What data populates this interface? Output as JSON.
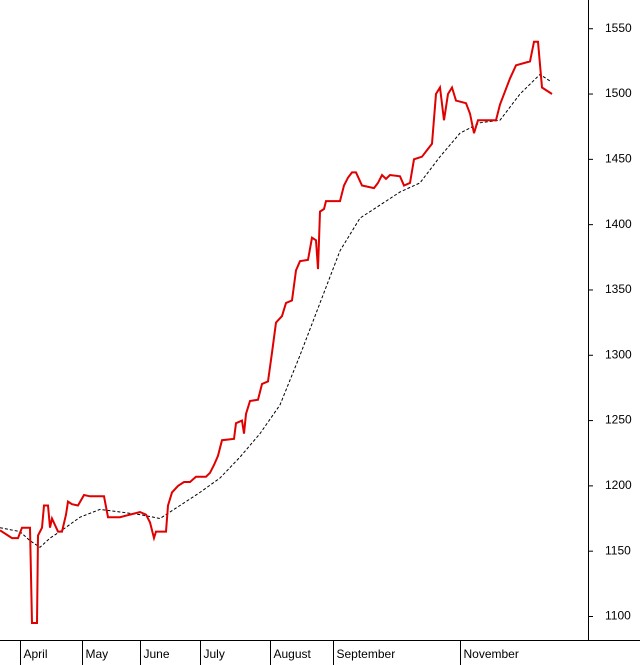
{
  "chart_data": {
    "type": "line",
    "xlim": [
      0,
      588
    ],
    "xticks": [
      {
        "value": 20,
        "label": "April"
      },
      {
        "value": 82,
        "label": "May"
      },
      {
        "value": 140,
        "label": "June"
      },
      {
        "value": 200,
        "label": "July"
      },
      {
        "value": 270,
        "label": "August"
      },
      {
        "value": 333,
        "label": "September"
      },
      {
        "value": 460,
        "label": "November"
      }
    ],
    "ylim": [
      1082,
      1572
    ],
    "yticks": [
      1100,
      1150,
      1200,
      1250,
      1300,
      1350,
      1400,
      1450,
      1500,
      1550
    ],
    "series": [
      {
        "color": "#e00000",
        "line_style": "solid",
        "x": [
          0,
          8,
          12,
          18,
          22,
          30,
          32,
          37,
          38,
          42,
          44,
          48,
          50,
          52,
          55,
          58,
          62,
          66,
          68,
          72,
          78,
          84,
          90,
          104,
          108,
          120,
          130,
          140,
          146,
          150,
          154,
          156,
          166,
          168,
          172,
          178,
          184,
          190,
          196,
          206,
          210,
          214,
          218,
          222,
          234,
          236,
          242,
          244,
          246,
          250,
          258,
          262,
          268,
          272,
          276,
          282,
          286,
          292,
          296,
          300,
          308,
          312,
          316,
          318,
          320,
          324,
          326,
          340,
          344,
          348,
          352,
          356,
          362,
          374,
          378,
          382,
          386,
          390,
          400,
          404,
          410,
          414,
          422,
          428,
          432,
          436,
          440,
          444,
          448,
          452,
          456,
          466,
          470,
          474,
          478,
          496,
          500,
          510,
          516,
          530,
          534,
          538,
          542,
          552
        ],
        "values": [
          1166,
          1162,
          1160,
          1160,
          1168,
          1168,
          1095,
          1095,
          1162,
          1168,
          1185,
          1185,
          1168,
          1175,
          1170,
          1165,
          1165,
          1178,
          1188,
          1186,
          1185,
          1193,
          1192,
          1192,
          1176,
          1176,
          1178,
          1180,
          1178,
          1172,
          1160,
          1165,
          1165,
          1185,
          1195,
          1200,
          1203,
          1203,
          1207,
          1207,
          1210,
          1216,
          1223,
          1235,
          1236,
          1248,
          1250,
          1240,
          1255,
          1265,
          1266,
          1278,
          1280,
          1302,
          1325,
          1330,
          1340,
          1342,
          1365,
          1372,
          1373,
          1390,
          1388,
          1366,
          1410,
          1412,
          1418,
          1418,
          1430,
          1436,
          1440,
          1440,
          1430,
          1428,
          1432,
          1438,
          1435,
          1438,
          1437,
          1430,
          1432,
          1450,
          1452,
          1458,
          1462,
          1500,
          1505,
          1480,
          1500,
          1505,
          1495,
          1493,
          1485,
          1470,
          1480,
          1480,
          1492,
          1512,
          1522,
          1525,
          1540,
          1540,
          1505,
          1500
        ]
      },
      {
        "color": "#000000",
        "line_style": "dashed",
        "x": [
          0,
          20,
          30,
          40,
          50,
          60,
          80,
          100,
          120,
          140,
          160,
          180,
          200,
          220,
          240,
          260,
          280,
          300,
          320,
          340,
          360,
          380,
          400,
          420,
          440,
          460,
          480,
          500,
          520,
          540,
          550
        ],
        "values": [
          1168,
          1165,
          1158,
          1153,
          1160,
          1165,
          1176,
          1182,
          1180,
          1178,
          1175,
          1185,
          1195,
          1206,
          1222,
          1240,
          1262,
          1300,
          1340,
          1380,
          1405,
          1415,
          1425,
          1432,
          1452,
          1470,
          1478,
          1480,
          1500,
          1515,
          1510
        ]
      }
    ]
  }
}
